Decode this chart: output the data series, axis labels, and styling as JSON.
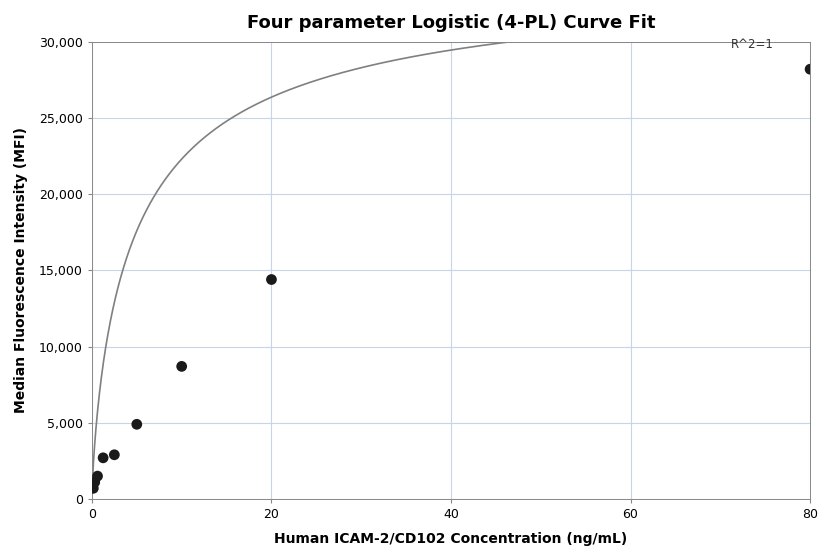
{
  "title": "Four parameter Logistic (4-PL) Curve Fit",
  "xlabel": "Human ICAM-2/CD102 Concentration (ng/mL)",
  "ylabel": "Median Fluorescence Intensity (MFI)",
  "scatter_x": [
    0.156,
    0.313,
    0.625,
    1.25,
    2.5,
    5.0,
    10.0,
    20.0,
    80.0
  ],
  "scatter_y": [
    700,
    1100,
    1500,
    2700,
    2900,
    4900,
    8700,
    14400,
    28200
  ],
  "xlim": [
    0,
    80
  ],
  "ylim": [
    0,
    30000
  ],
  "xticks": [
    0,
    20,
    40,
    60,
    80
  ],
  "yticks": [
    0,
    5000,
    10000,
    15000,
    20000,
    25000,
    30000
  ],
  "r_squared_text": "R^2=1",
  "r_squared_x": 76,
  "r_squared_y": 29400,
  "scatter_color": "#1a1a1a",
  "line_color": "#808080",
  "background_color": "#ffffff",
  "grid_color": "#c8d4e8",
  "title_fontsize": 13,
  "label_fontsize": 10,
  "tick_fontsize": 9
}
